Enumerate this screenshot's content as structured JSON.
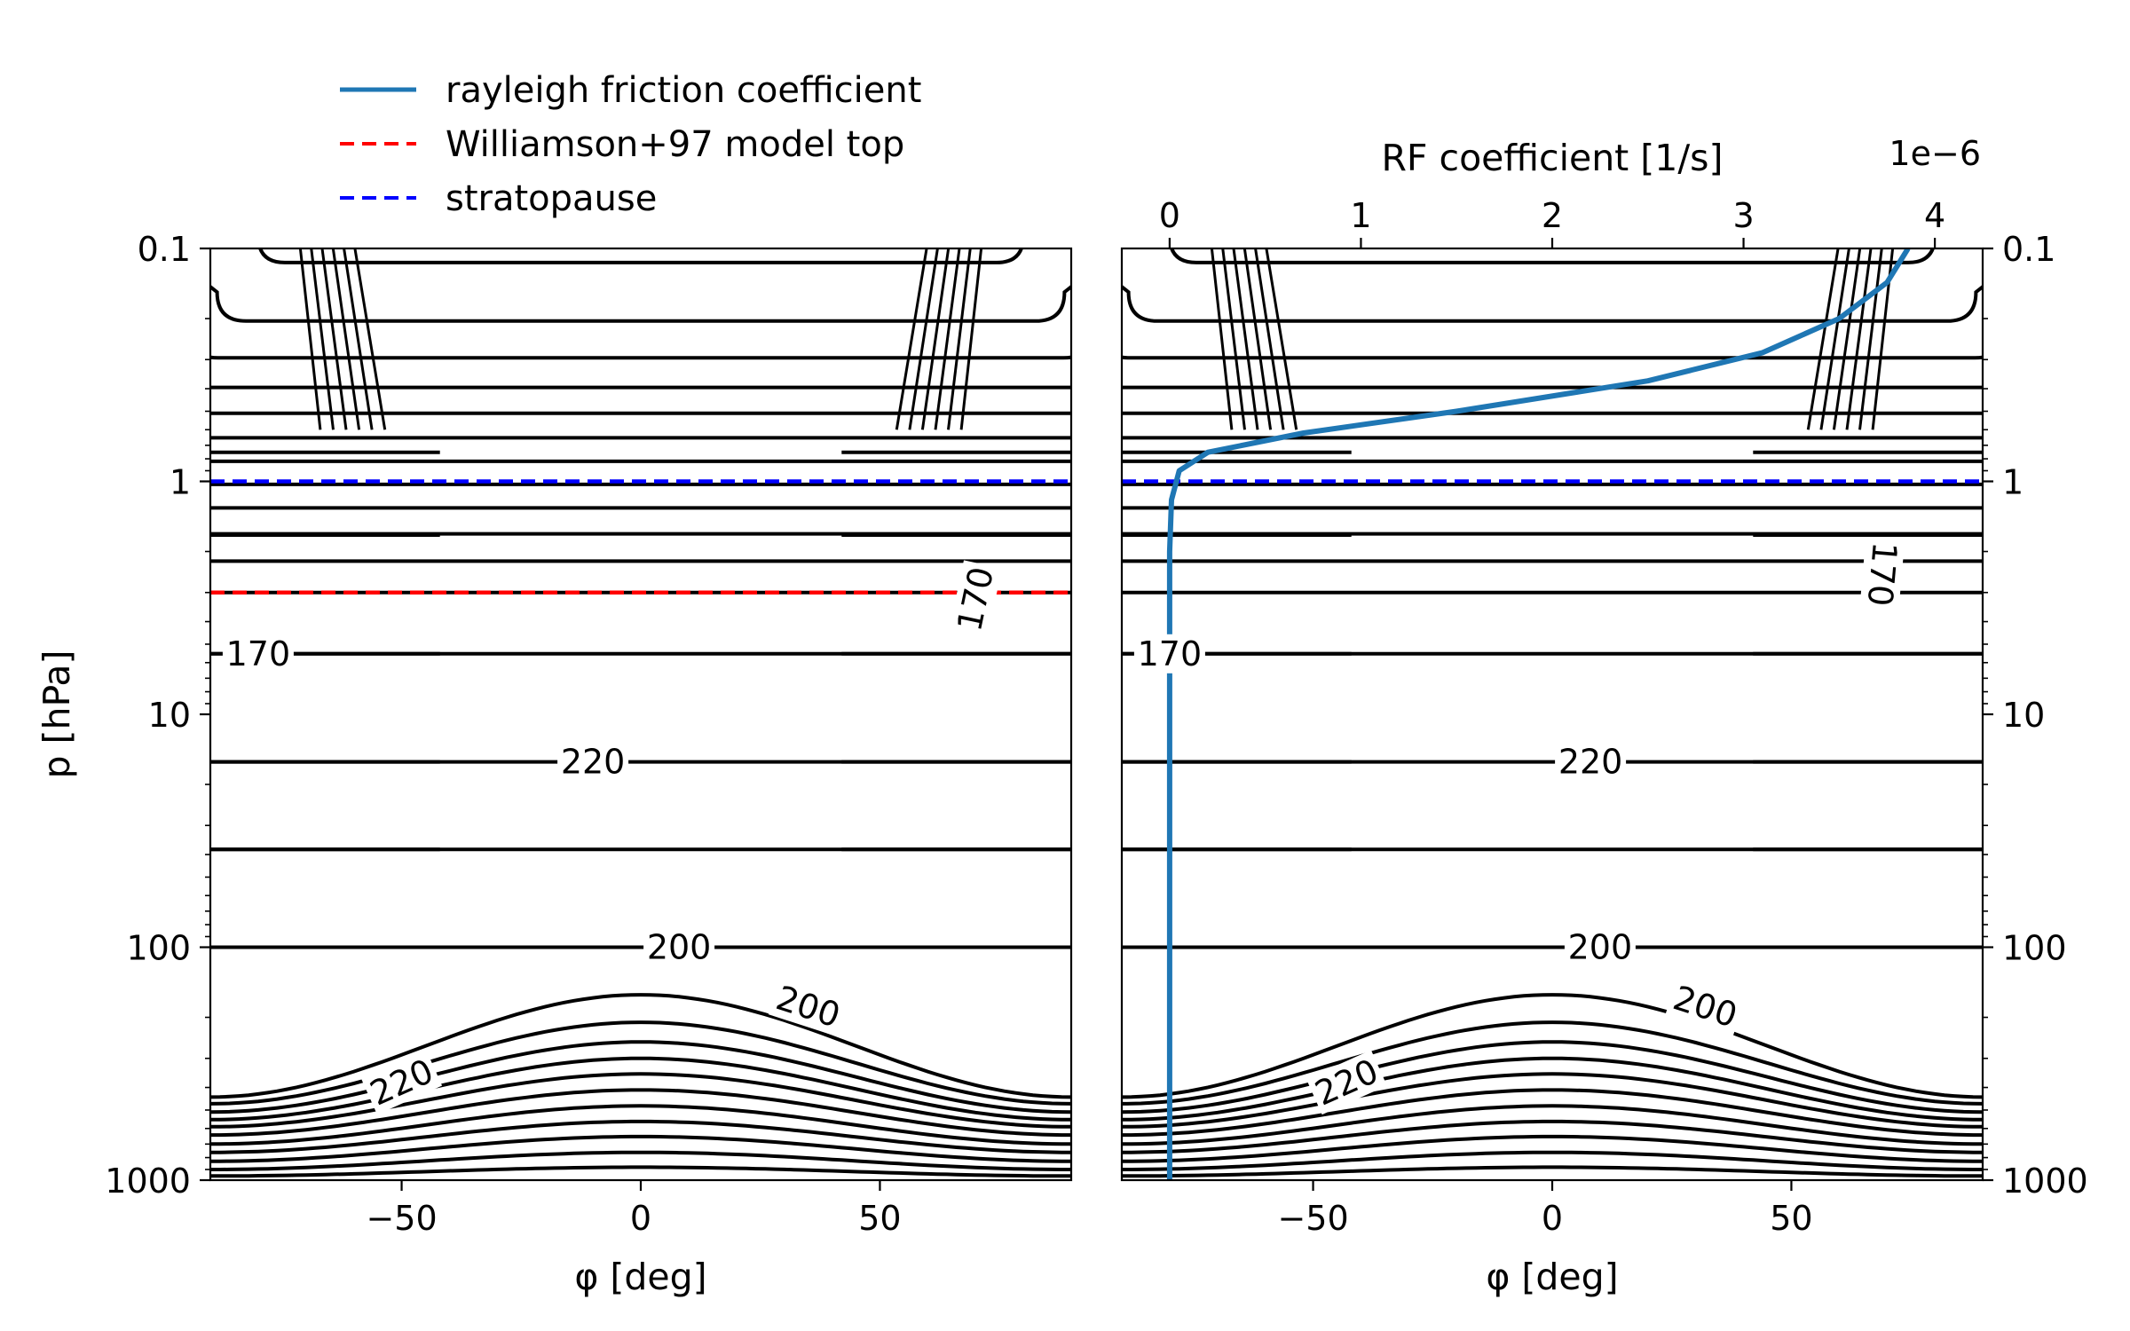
{
  "legend": {
    "entries": [
      {
        "label": "rayleigh friction coefficient",
        "color": "#1f77b4",
        "style": "solid"
      },
      {
        "label": "Williamson+97 model top",
        "color": "#ff0000",
        "style": "dashed"
      },
      {
        "label": "stratopause",
        "color": "#0000ff",
        "style": "dashed"
      }
    ],
    "placement": "upper-left, above panels"
  },
  "chart_data": [
    {
      "type": "contour",
      "panel": "left",
      "xlabel": "φ  [deg]",
      "ylabel": "p  [hPa]",
      "xlim": [
        -90,
        90
      ],
      "ylim": [
        1000,
        0.1
      ],
      "yscale": "log",
      "xticks": [
        -50,
        0,
        50
      ],
      "xtick_labels": [
        "−50",
        "0",
        "50"
      ],
      "yticks": [
        0.1,
        1,
        10,
        100,
        1000
      ],
      "ytick_labels": [
        "0.1",
        "1",
        "10",
        "100",
        "1000"
      ],
      "contour_labels": [
        {
          "text": "170",
          "lat": -80,
          "p": 5.5
        },
        {
          "text": "170",
          "lat": 70,
          "p": 3.2,
          "rotation": -78
        },
        {
          "text": "220",
          "lat": -10,
          "p": 16
        },
        {
          "text": "200",
          "lat": 8,
          "p": 100
        },
        {
          "text": "200",
          "lat": 35,
          "p": 180,
          "rotation": 18
        },
        {
          "text": "220",
          "lat": -50,
          "p": 380,
          "rotation": -24
        }
      ],
      "reference_lines": [
        {
          "name": "stratopause",
          "p": 1,
          "color": "#0000ff"
        },
        {
          "name": "Williamson+97 model top",
          "p": 3,
          "color": "#ff0000"
        }
      ]
    },
    {
      "type": "contour+line",
      "panel": "right",
      "xlabel": "φ  [deg]",
      "top_xlabel": "RF coefficient [1/s]",
      "top_x_offset": "1e−6",
      "xlim": [
        -90,
        90
      ],
      "top_xlim": [
        0,
        4
      ],
      "ylim": [
        1000,
        0.1
      ],
      "yscale": "log",
      "xticks": [
        -50,
        0,
        50
      ],
      "xtick_labels": [
        "−50",
        "0",
        "50"
      ],
      "top_xticks": [
        0,
        1,
        2,
        3,
        4
      ],
      "top_xtick_labels": [
        "0",
        "1",
        "2",
        "3",
        "4"
      ],
      "yticks": [
        0.1,
        1,
        10,
        100,
        1000
      ],
      "ytick_labels": [
        "0.1",
        "1",
        "10",
        "100",
        "1000"
      ],
      "contour_labels": [
        {
          "text": "170",
          "lat": -80,
          "p": 5.5
        },
        {
          "text": "170",
          "lat": 69,
          "p": 2.5,
          "rotation": 95
        },
        {
          "text": "220",
          "lat": 8,
          "p": 16
        },
        {
          "text": "200",
          "lat": 10,
          "p": 100
        },
        {
          "text": "200",
          "lat": 32,
          "p": 180,
          "rotation": 18
        },
        {
          "text": "220",
          "lat": -43,
          "p": 380,
          "rotation": -24
        }
      ],
      "reference_lines": [
        {
          "name": "stratopause",
          "p": 1,
          "color": "#0000ff"
        }
      ],
      "series": [
        {
          "name": "rayleigh friction coefficient",
          "color": "#1f77b4",
          "x_units": "1/s (×1e-6)",
          "points": [
            [
              0.0,
              1000
            ],
            [
              0.0,
              100
            ],
            [
              0.0,
              10
            ],
            [
              0.0,
              2
            ],
            [
              0.01,
              1.2
            ],
            [
              0.05,
              0.9
            ],
            [
              0.2,
              0.75
            ],
            [
              0.7,
              0.62
            ],
            [
              1.5,
              0.5
            ],
            [
              2.5,
              0.37
            ],
            [
              3.1,
              0.28
            ],
            [
              3.5,
              0.2
            ],
            [
              3.75,
              0.14
            ],
            [
              3.86,
              0.1
            ]
          ]
        }
      ]
    }
  ]
}
